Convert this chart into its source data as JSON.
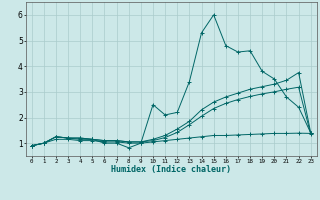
{
  "xlabel": "Humidex (Indice chaleur)",
  "bg_color": "#cce8e8",
  "grid_color": "#aacccc",
  "line_color": "#006666",
  "xlim": [
    -0.5,
    23.5
  ],
  "ylim": [
    0.5,
    6.5
  ],
  "yticks": [
    1,
    2,
    3,
    4,
    5,
    6
  ],
  "xticks": [
    0,
    1,
    2,
    3,
    4,
    5,
    6,
    7,
    8,
    9,
    10,
    11,
    12,
    13,
    14,
    15,
    16,
    17,
    18,
    19,
    20,
    21,
    22,
    23
  ],
  "series": [
    {
      "x": [
        0,
        1,
        2,
        3,
        4,
        5,
        6,
        7,
        8,
        9,
        10,
        11,
        12,
        13,
        14,
        15,
        16,
        17,
        18,
        19,
        20,
        21,
        22,
        23
      ],
      "y": [
        0.9,
        1.0,
        1.25,
        1.2,
        1.15,
        1.15,
        1.0,
        1.0,
        0.82,
        1.0,
        2.5,
        2.1,
        2.2,
        3.4,
        5.3,
        6.0,
        4.8,
        4.55,
        4.6,
        3.8,
        3.5,
        2.8,
        2.4,
        1.4
      ]
    },
    {
      "x": [
        0,
        1,
        2,
        3,
        4,
        5,
        6,
        7,
        8,
        9,
        10,
        11,
        12,
        13,
        14,
        15,
        16,
        17,
        18,
        19,
        20,
        21,
        22,
        23
      ],
      "y": [
        0.9,
        1.0,
        1.25,
        1.2,
        1.2,
        1.15,
        1.1,
        1.1,
        1.05,
        1.05,
        1.15,
        1.3,
        1.55,
        1.85,
        2.3,
        2.6,
        2.8,
        2.95,
        3.1,
        3.2,
        3.3,
        3.45,
        3.75,
        1.4
      ]
    },
    {
      "x": [
        0,
        1,
        2,
        3,
        4,
        5,
        6,
        7,
        8,
        9,
        10,
        11,
        12,
        13,
        14,
        15,
        16,
        17,
        18,
        19,
        20,
        21,
        22,
        23
      ],
      "y": [
        0.9,
        1.0,
        1.25,
        1.2,
        1.2,
        1.15,
        1.1,
        1.1,
        1.05,
        1.05,
        1.1,
        1.22,
        1.42,
        1.72,
        2.05,
        2.35,
        2.55,
        2.7,
        2.82,
        2.92,
        3.0,
        3.1,
        3.18,
        1.35
      ]
    },
    {
      "x": [
        0,
        1,
        2,
        3,
        4,
        5,
        6,
        7,
        8,
        9,
        10,
        11,
        12,
        13,
        14,
        15,
        16,
        17,
        18,
        19,
        20,
        21,
        22,
        23
      ],
      "y": [
        0.9,
        1.0,
        1.15,
        1.15,
        1.1,
        1.1,
        1.05,
        1.05,
        1.0,
        1.0,
        1.05,
        1.1,
        1.15,
        1.2,
        1.25,
        1.3,
        1.3,
        1.32,
        1.34,
        1.36,
        1.38,
        1.38,
        1.39,
        1.38
      ]
    }
  ]
}
